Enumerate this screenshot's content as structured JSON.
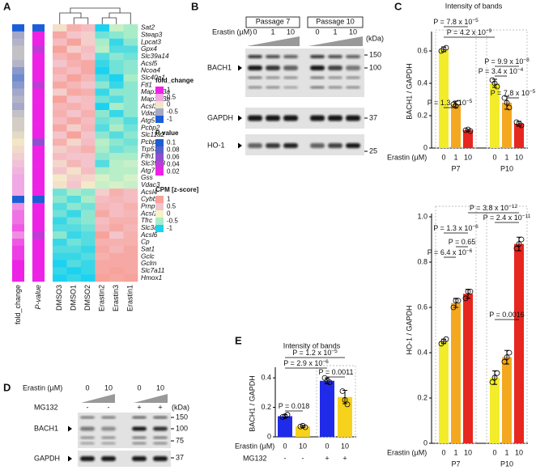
{
  "panel_a": {
    "label": "A",
    "genes": [
      "Sat2",
      "Steap3",
      "Lpcat3",
      "Gpx4",
      "Slc39a14",
      "Acsl5",
      "Ncoa4",
      "Slc40a1",
      "Ftl1",
      "Map1lc3a",
      "Map1lc3b",
      "Acsl3",
      "Vdac2",
      "Atg5",
      "Pcbp2",
      "Slc11a2",
      "Pcbp1",
      "Trp53",
      "Fth1",
      "Slc39a8",
      "Atg7",
      "Gss",
      "Vdac3",
      "Acsl4",
      "Cybb",
      "Prnp",
      "Acsl1",
      "Tfrc",
      "Slc3a2",
      "Acsl6",
      "Cp",
      "Sat1",
      "Gclc",
      "Gclm",
      "Slc7a11",
      "Hmox1"
    ],
    "samples": [
      "DMSO3",
      "DMSO1",
      "DMSO2",
      "Erastin2",
      "Erastin3",
      "Erastin1"
    ],
    "fold_change_label": "fold_change",
    "p_value_label": "P-value",
    "fold_change": [
      -1,
      -0.5,
      -0.4,
      -0.3,
      -0.3,
      -0.4,
      -0.6,
      -0.7,
      -0.6,
      -0.5,
      -0.4,
      -0.5,
      -0.3,
      -0.2,
      -0.2,
      -0.1,
      0,
      0.1,
      0.2,
      0.3,
      0.4,
      0.5,
      0.5,
      0.5,
      -1,
      0.6,
      0.7,
      0.7,
      0.8,
      0.6,
      0.8,
      0.9,
      0.9,
      1,
      1,
      1
    ],
    "p_value": [
      0.1,
      0.02,
      0.02,
      0.04,
      0.02,
      0.02,
      0.02,
      0.02,
      0.04,
      0.02,
      0.02,
      0.02,
      0.02,
      0.02,
      0.02,
      0.02,
      0.06,
      0.02,
      0.02,
      0.02,
      0.02,
      0.02,
      0.02,
      0.02,
      0.1,
      0.02,
      0.02,
      0.02,
      0.02,
      0.04,
      0.02,
      0.02,
      0.02,
      0.02,
      0.02,
      0.02
    ],
    "z": [
      [
        0.2,
        0.8,
        0.6,
        -1,
        -0.3,
        -0.5
      ],
      [
        0.9,
        0.5,
        0.4,
        -0.7,
        -0.6,
        -0.5
      ],
      [
        0.6,
        1,
        0.4,
        -0.5,
        -0.9,
        -0.6
      ],
      [
        1,
        0.4,
        0.6,
        -0.4,
        -0.8,
        -0.8
      ],
      [
        0.7,
        0.9,
        0.5,
        -0.8,
        -0.6,
        -0.7
      ],
      [
        0.5,
        0.8,
        0.9,
        -0.9,
        -0.7,
        -0.6
      ],
      [
        0.8,
        0.6,
        0.9,
        -1,
        -0.7,
        -0.6
      ],
      [
        0.6,
        1,
        0.7,
        -0.8,
        -1,
        -0.5
      ],
      [
        0.9,
        0.7,
        0.5,
        -0.6,
        -0.9,
        -0.6
      ],
      [
        0.4,
        0.9,
        0.8,
        -0.9,
        -0.6,
        -0.6
      ],
      [
        1,
        0.5,
        0.6,
        -0.7,
        -0.8,
        -0.6
      ],
      [
        0.7,
        0.8,
        0.6,
        -1,
        -0.5,
        -0.6
      ],
      [
        0.8,
        0.5,
        0.8,
        -0.6,
        -0.9,
        -0.6
      ],
      [
        0.6,
        0.9,
        0.6,
        -0.7,
        -0.6,
        -0.8
      ],
      [
        0.9,
        0.4,
        0.7,
        -0.8,
        -0.5,
        -0.7
      ],
      [
        0.5,
        1,
        0.5,
        -0.6,
        -0.8,
        -0.6
      ],
      [
        0.8,
        0.3,
        0.6,
        -0.4,
        -0.6,
        -0.7
      ],
      [
        0.4,
        0.6,
        0.8,
        -0.5,
        -0.7,
        -0.6
      ],
      [
        0.6,
        0.5,
        0.5,
        -0.6,
        -0.5,
        -0.5
      ],
      [
        0.3,
        0.7,
        0.5,
        -0.8,
        -0.4,
        -0.3
      ],
      [
        0.5,
        0.2,
        0.6,
        -0.5,
        -0.4,
        -0.4
      ],
      [
        0.1,
        0.4,
        0.3,
        -0.2,
        -0.4,
        -0.2
      ],
      [
        0.2,
        0.5,
        0.1,
        -0.3,
        -0.2,
        -0.3
      ],
      [
        -0.7,
        -0.5,
        -0.6,
        0.4,
        0.8,
        0.6
      ],
      [
        -0.6,
        -0.8,
        -0.5,
        0.6,
        0.7,
        0.6
      ],
      [
        -0.8,
        -0.6,
        -0.7,
        0.7,
        0.6,
        0.8
      ],
      [
        -0.7,
        -0.9,
        -0.6,
        0.9,
        0.6,
        0.7
      ],
      [
        -0.9,
        -0.7,
        -0.6,
        0.6,
        0.8,
        0.8
      ],
      [
        -0.8,
        -0.8,
        -0.7,
        0.7,
        0.9,
        0.7
      ],
      [
        -0.6,
        -0.9,
        -0.8,
        1,
        0.5,
        0.8
      ],
      [
        -0.9,
        -0.7,
        -0.8,
        0.8,
        0.8,
        0.8
      ],
      [
        -0.8,
        -0.8,
        -0.9,
        0.9,
        0.7,
        0.9
      ],
      [
        -0.9,
        -0.9,
        -0.8,
        0.8,
        0.9,
        0.9
      ],
      [
        -1,
        -0.8,
        -0.9,
        0.9,
        0.9,
        0.9
      ],
      [
        -0.9,
        -1,
        -0.9,
        0.9,
        1,
        0.9
      ],
      [
        -1,
        -0.9,
        -1,
        1,
        0.9,
        1
      ]
    ],
    "legends": [
      {
        "title": "fold_change",
        "ticks": [
          1,
          0.5,
          0,
          -0.5,
          -1
        ],
        "colors": [
          "#ee22e6",
          "#f0a9e4",
          "#f2e6c4",
          "#a5a8c8",
          "#1b5fd8"
        ]
      },
      {
        "title": "P-value",
        "ticks": [
          0.1,
          0.08,
          0.06,
          0.04,
          0.02
        ],
        "colors": [
          "#1b5fd8",
          "#5a5fc8",
          "#8e4fd0",
          "#c13ad8",
          "#ee22e6"
        ]
      },
      {
        "title": "CPM [z-score]",
        "ticks": [
          1,
          0.5,
          0,
          -0.5,
          -1
        ],
        "colors": [
          "#f7a29a",
          "#f4c4cc",
          "#f4f4c8",
          "#a9ecc8",
          "#1cd2f0"
        ]
      }
    ]
  },
  "panel_b": {
    "label": "B",
    "treatment_label": "Erastin (µM)",
    "kda_label": "(kDa)",
    "groups": [
      {
        "name": "Passage 7",
        "doses": [
          "0",
          "1",
          "10"
        ]
      },
      {
        "name": "Passage 10",
        "doses": [
          "0",
          "1",
          "10"
        ]
      }
    ],
    "blots": [
      {
        "name": "BACH1",
        "markers": [
          "150",
          "100"
        ]
      },
      {
        "name": "GAPDH",
        "markers": [
          "37"
        ]
      },
      {
        "name": "HO-1",
        "markers": [
          "25"
        ]
      }
    ]
  },
  "panel_c": {
    "label": "C",
    "title": "Intensity of bands",
    "charts": [
      {
        "type": "bar",
        "ylabel": "BACH1 / GAPDH",
        "xlabel": "Erastin (µM)",
        "ylim": [
          0,
          0.7
        ],
        "yticks": [
          0,
          0.2,
          0.4,
          0.6
        ],
        "colors": [
          "#f2ec2a",
          "#f4a81f",
          "#e6261f"
        ],
        "groups": [
          {
            "name": "P7",
            "categories": [
              "0",
              "1",
              "10"
            ],
            "values": [
              0.61,
              0.27,
              0.11
            ],
            "errors": [
              0.015,
              0.02,
              0.005
            ],
            "points": [
              [
                0.6,
                0.62,
                0.61
              ],
              [
                0.27,
                0.28,
                0.26
              ],
              [
                0.11,
                0.105,
                0.115
              ]
            ]
          },
          {
            "name": "P10",
            "categories": [
              "0",
              "1",
              "10"
            ],
            "values": [
              0.4,
              0.28,
              0.15
            ],
            "errors": [
              0.025,
              0.04,
              0.015
            ],
            "points": [
              [
                0.42,
                0.38,
                0.4
              ],
              [
                0.31,
                0.25,
                0.28
              ],
              [
                0.16,
                0.14,
                0.15
              ]
            ]
          }
        ],
        "annotations": [
          {
            "text": "P = 7.8 x 10",
            "exp": "−5"
          },
          {
            "text": "P = 4.2 x 10",
            "exp": "−9"
          },
          {
            "text": "P = 1.3 x 10",
            "exp": "−5"
          },
          {
            "text": "P = 9.9 x 10",
            "exp": "−8"
          },
          {
            "text": "P = 3.4 x 10",
            "exp": "−4"
          },
          {
            "text": "P = 7.8 x 10",
            "exp": "−5"
          }
        ]
      },
      {
        "type": "bar",
        "ylabel": "HO-1 / GAPDH",
        "xlabel": "Erastin (µM)",
        "ylim": [
          0,
          1
        ],
        "yticks": [
          0,
          0.2,
          0.4,
          0.6,
          0.8,
          {
            "value": 1,
            "label": "1.0"
          }
        ],
        "colors": [
          "#f2ec2a",
          "#f4a81f",
          "#e6261f"
        ],
        "groups": [
          {
            "name": "P7",
            "categories": [
              "0",
              "1",
              "10"
            ],
            "values": [
              0.45,
              0.62,
              0.66
            ],
            "errors": [
              0.01,
              0.02,
              0.02
            ],
            "points": [
              [
                0.44,
                0.46,
                0.45
              ],
              [
                0.6,
                0.63,
                0.63
              ],
              [
                0.64,
                0.67,
                0.67
              ]
            ]
          },
          {
            "name": "P10",
            "categories": [
              "0",
              "1",
              "10"
            ],
            "values": [
              0.29,
              0.38,
              0.88
            ],
            "errors": [
              0.03,
              0.03,
              0.03
            ],
            "points": [
              [
                0.27,
                0.31,
                0.29
              ],
              [
                0.36,
                0.4,
                0.38
              ],
              [
                0.86,
                0.9,
                0.88
              ]
            ]
          }
        ],
        "annotations": [
          {
            "text": "P = 3.8 x 10",
            "exp": "−12"
          },
          {
            "text": "P = 2.4 x 10",
            "exp": "−11"
          },
          {
            "text": "P = 1.3 x 10",
            "exp": "−6"
          },
          {
            "text": "P = 0.65"
          },
          {
            "text": "P = 6.4 x 10",
            "exp": "−6"
          },
          {
            "text": "P = 0.0016"
          }
        ]
      }
    ]
  },
  "panel_d": {
    "label": "D",
    "treatment_label": "Erastin (µM)",
    "doses": [
      "0",
      "10",
      "0",
      "10"
    ],
    "mg132_label": "MG132",
    "mg132": [
      "-",
      "-",
      "+",
      "+"
    ],
    "kda_label": "(kDa)",
    "blots": [
      {
        "name": "BACH1",
        "markers": [
          "150",
          "100",
          "75"
        ]
      },
      {
        "name": "GAPDH",
        "markers": [
          "37"
        ]
      }
    ]
  },
  "panel_e": {
    "label": "E",
    "chart": {
      "type": "bar",
      "title": "Intensity of bands",
      "ylabel": "BACH1 / GAPDH",
      "xlabel": "Erastin (µM)",
      "ylim": [
        0,
        0.45
      ],
      "yticks": [
        0,
        0.2,
        0.4
      ],
      "colors": [
        "#1f2be8",
        "#f7d21c"
      ],
      "groups": [
        {
          "categories": [
            "0",
            "10"
          ],
          "values": [
            0.14,
            0.07
          ],
          "errors": [
            0.01,
            0.005
          ],
          "points": [
            [
              0.135,
              0.15,
              0.14
            ],
            [
              0.07,
              0.065,
              0.075
            ]
          ]
        },
        {
          "categories": [
            "0",
            "10"
          ],
          "values": [
            0.38,
            0.27
          ],
          "errors": [
            0.02,
            0.045
          ],
          "points": [
            [
              0.4,
              0.37,
              0.38
            ],
            [
              0.31,
              0.22,
              0.25
            ]
          ]
        }
      ],
      "row2_label": "MG132",
      "row2": [
        "-",
        "-",
        "+",
        "+"
      ],
      "annotations": [
        {
          "text": "P = 1.2 x 10",
          "exp": "−5"
        },
        {
          "text": "P = 2.9 x 10",
          "exp": "−6"
        },
        {
          "text": "P = 0.0011"
        },
        {
          "text": "P = 0.018"
        }
      ]
    }
  }
}
